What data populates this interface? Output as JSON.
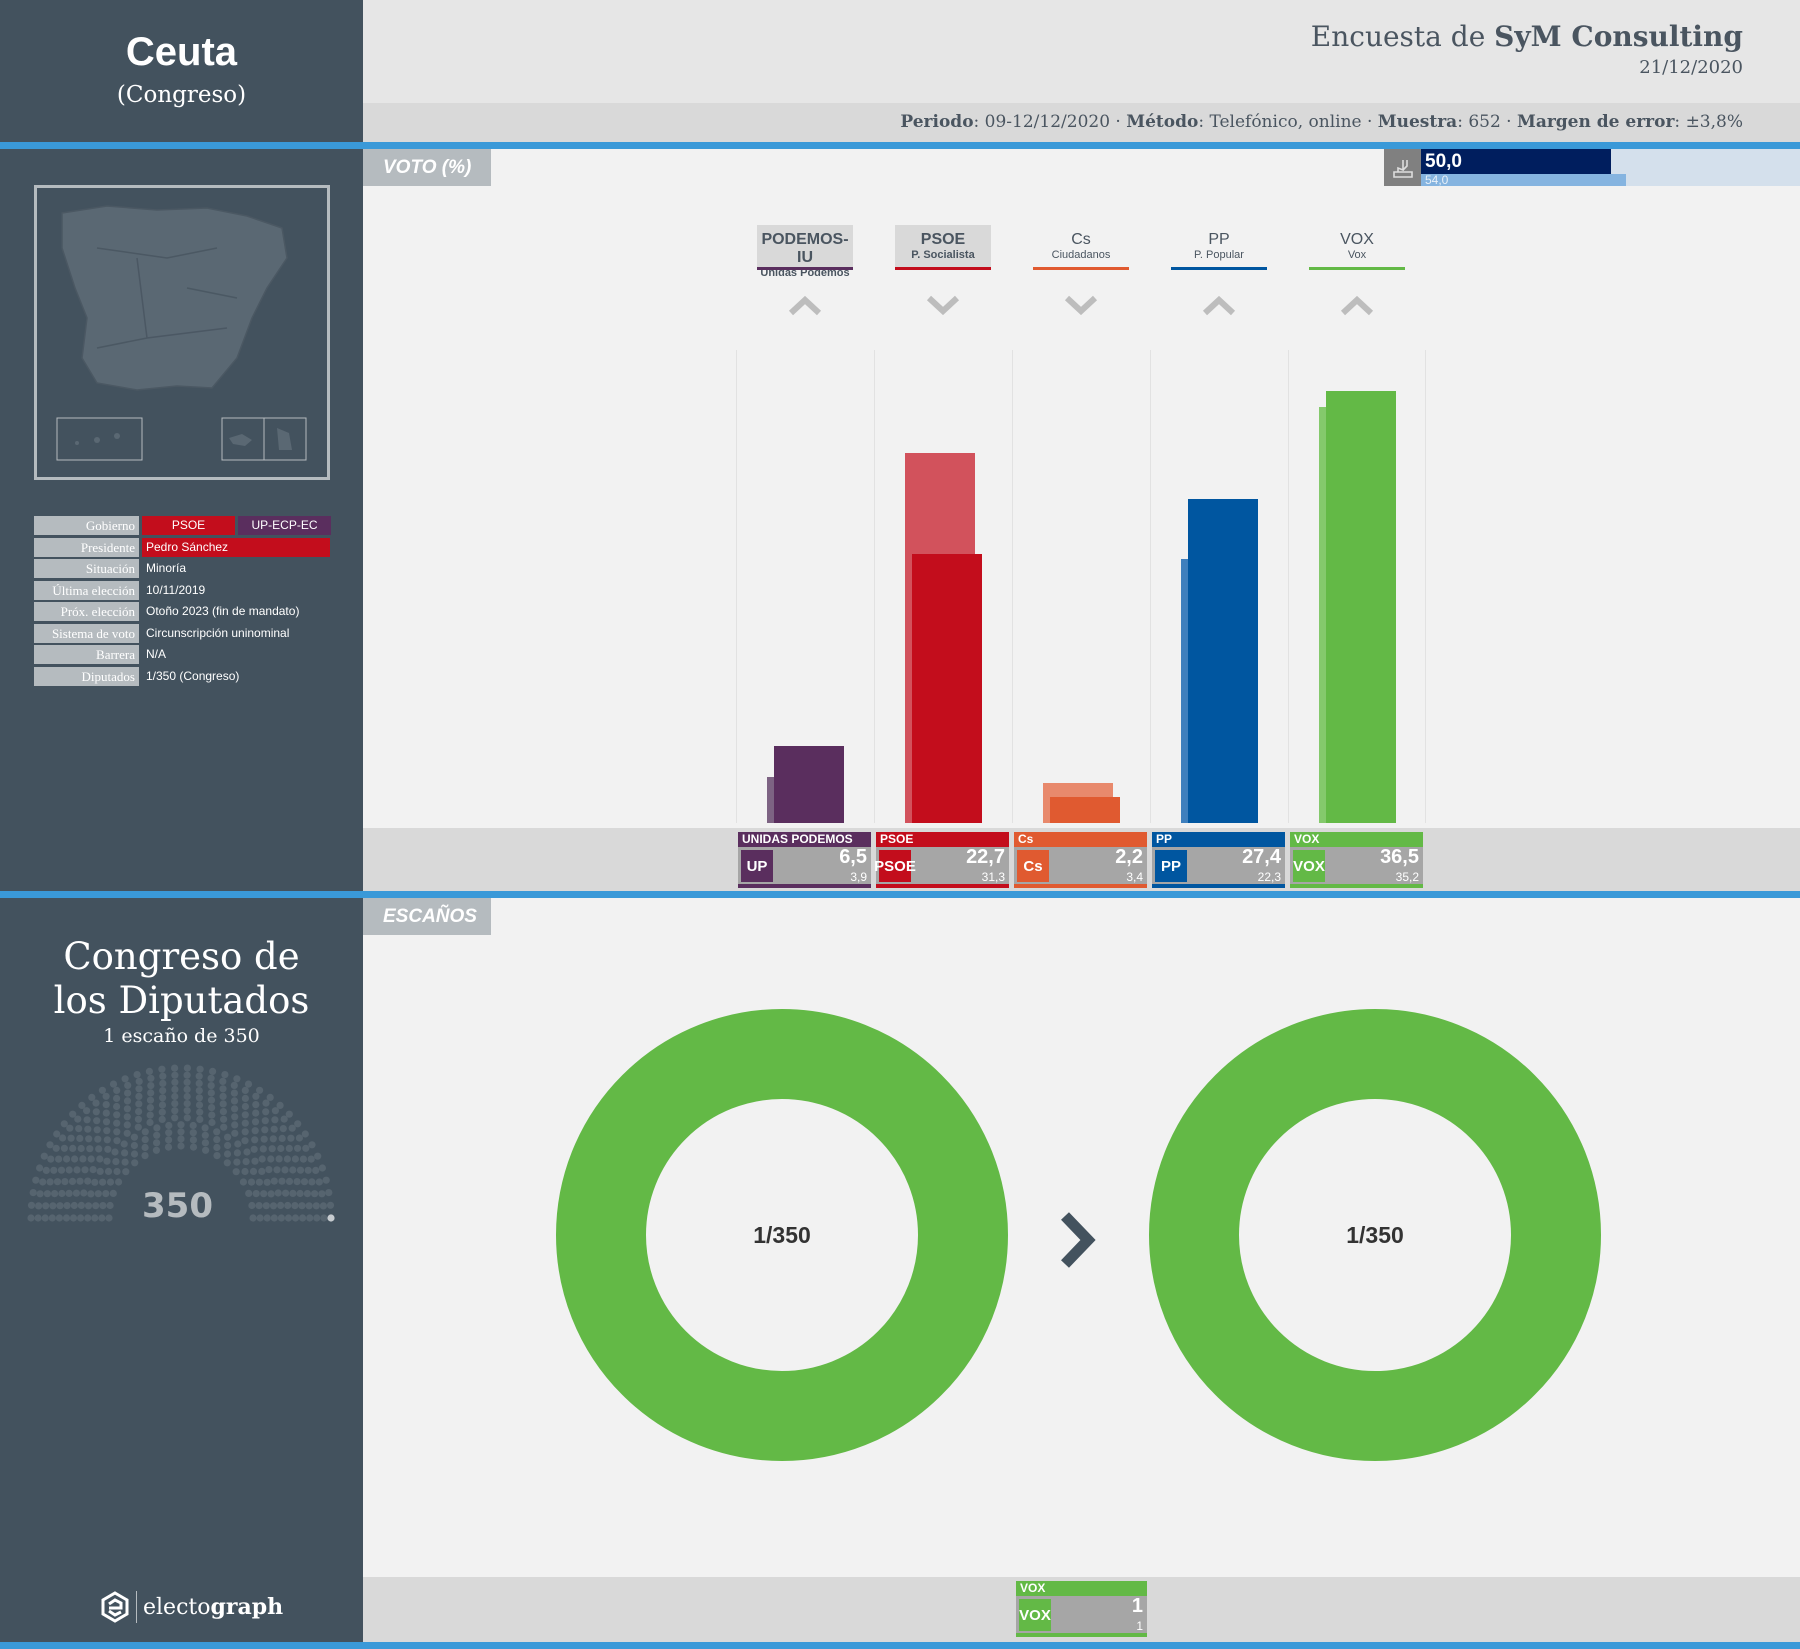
{
  "sidebar": {
    "region": "Ceuta",
    "chamber_sub": "(Congreso)",
    "info": [
      {
        "label": "Gobierno",
        "values": [
          "PSOE",
          "UP-ECP-EC"
        ],
        "colors": [
          "#c30d1c",
          "#5a2e5e"
        ]
      },
      {
        "label": "Presidente",
        "values": [
          "Pedro Sánchez"
        ],
        "colors": [
          "#c30d1c"
        ]
      },
      {
        "label": "Situación",
        "values": [
          "Minoría"
        ]
      },
      {
        "label": "Última elección",
        "values": [
          "10/11/2019"
        ]
      },
      {
        "label": "Próx. elección",
        "values": [
          "Otoño 2023 (fin de mandato)"
        ]
      },
      {
        "label": "Sistema de voto",
        "values": [
          "Circunscripción  uninominal"
        ]
      },
      {
        "label": "Barrera",
        "values": [
          "N/A"
        ]
      },
      {
        "label": "Diputados",
        "values": [
          "1/350 (Congreso)"
        ]
      }
    ],
    "parliament_title_1": "Congreso de",
    "parliament_title_2": "los Diputados",
    "parliament_sub": "1 escaño de 350",
    "parliament_total": "350",
    "brand_light": "electo",
    "brand_bold": "graph"
  },
  "header": {
    "title_prefix": "Encuesta de ",
    "pollster": "SyM Consulting",
    "date": "21/12/2020",
    "meta": [
      {
        "k": "Periodo",
        "v": "09-12/12/2020"
      },
      {
        "k": "Método",
        "v": "Telefónico, online"
      },
      {
        "k": "Muestra",
        "v": "652"
      },
      {
        "k": "Margen de error",
        "v": "±3,8%"
      }
    ]
  },
  "vote_tab": "VOTO (%)",
  "seats_tab": "ESCAÑOS",
  "turnout": {
    "current": "50,0",
    "previous": "54,0",
    "current_value": 50.0,
    "previous_value": 54.0,
    "icon": "ballot-box-icon"
  },
  "chart_data": {
    "type": "bar",
    "ylabel": "",
    "categories": [
      "PODEMOS-IU",
      "PSOE",
      "Cs",
      "PP",
      "VOX"
    ],
    "series": [
      {
        "name": "current",
        "values": [
          6.5,
          22.7,
          2.2,
          27.4,
          36.5
        ]
      },
      {
        "name": "previous",
        "values": [
          3.9,
          31.3,
          3.4,
          22.3,
          35.2
        ]
      }
    ],
    "parties": [
      {
        "short": "PODEMOS-IU",
        "sub": "Unidas Podemos",
        "legend": "UNIDAS PODEMOS",
        "logo": "UP",
        "vote": "6,5",
        "prev": "3,9",
        "trend": "up",
        "color": "#5a2e5e",
        "prev_color": "#7d6383",
        "highlight": true
      },
      {
        "short": "PSOE",
        "sub": "P. Socialista",
        "legend": "PSOE",
        "logo": "PSOE",
        "vote": "22,7",
        "prev": "31,3",
        "trend": "down",
        "color": "#c30d1c",
        "prev_color": "#d2525c",
        "highlight": true
      },
      {
        "short": "Cs",
        "sub": "Ciudadanos",
        "legend": "Cs",
        "logo": "Cs",
        "vote": "2,2",
        "prev": "3,4",
        "trend": "down",
        "color": "#e05a30",
        "prev_color": "#e8896c",
        "highlight": false
      },
      {
        "short": "PP",
        "sub": "P. Popular",
        "legend": "PP",
        "logo": "PP",
        "vote": "27,4",
        "prev": "22,3",
        "trend": "up",
        "color": "#0056a0",
        "prev_color": "#3e7fbd",
        "highlight": false
      },
      {
        "short": "VOX",
        "sub": "Vox",
        "legend": "VOX",
        "logo": "VOX",
        "vote": "36,5",
        "prev": "35,2",
        "trend": "up",
        "color": "#63b946",
        "prev_color": "#84c96c",
        "highlight": false
      }
    ]
  },
  "seats": {
    "previous": "1/350",
    "current": "1/350",
    "color": "#63b946",
    "legend": [
      {
        "name": "VOX",
        "logo": "VOX",
        "seats": "1",
        "prev": "1",
        "color": "#63b946"
      }
    ]
  }
}
